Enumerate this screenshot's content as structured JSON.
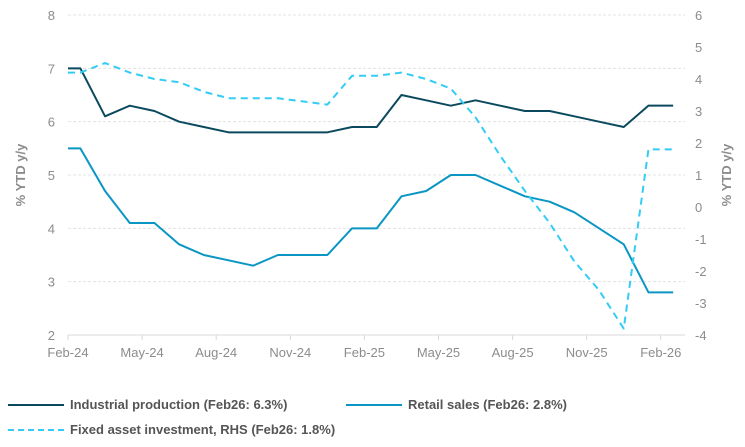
{
  "chart_data": {
    "type": "line",
    "categories": [
      "Feb-24",
      "Mar-24",
      "Apr-24",
      "May-24",
      "Jun-24",
      "Jul-24",
      "Aug-24",
      "Sep-24",
      "Oct-24",
      "Nov-24",
      "Dec-24",
      "Jan-25",
      "Feb-25",
      "Mar-25",
      "Apr-25",
      "May-25",
      "Jun-25",
      "Jul-25",
      "Aug-25",
      "Sep-25",
      "Oct-25",
      "Nov-25",
      "Dec-25",
      "Jan-26",
      "Feb-26"
    ],
    "xtick_labels": [
      "Feb-24",
      "May-24",
      "Aug-24",
      "Nov-24",
      "Feb-25",
      "May-25",
      "Aug-25",
      "Nov-25",
      "Feb-26"
    ],
    "ylabel": "% YTD y/y",
    "y2label": "% YTD y/y",
    "ylim": [
      2,
      8
    ],
    "y2lim": [
      -4,
      6
    ],
    "yticks": [
      2,
      3,
      4,
      5,
      6,
      7,
      8
    ],
    "y2ticks": [
      -4,
      -3,
      -2,
      -1,
      0,
      1,
      2,
      3,
      4,
      5,
      6
    ],
    "grid": true,
    "legend_placement": "bottom",
    "series": [
      {
        "name": "Industrial production (Feb26: 6.3%)",
        "axis": "left",
        "color": "#0b4a5e",
        "style": "solid",
        "values": [
          7.0,
          6.1,
          6.3,
          6.2,
          6.0,
          5.9,
          5.8,
          5.8,
          5.8,
          5.8,
          5.8,
          5.9,
          5.9,
          6.5,
          6.4,
          6.3,
          6.4,
          6.3,
          6.2,
          6.2,
          6.1,
          6.0,
          5.9,
          6.3,
          6.3
        ]
      },
      {
        "name": "Retail sales (Feb26: 2.8%)",
        "axis": "left",
        "color": "#0a96c4",
        "style": "solid",
        "values": [
          5.5,
          4.7,
          4.1,
          4.1,
          3.7,
          3.5,
          3.4,
          3.3,
          3.5,
          3.5,
          3.5,
          4.0,
          4.0,
          4.6,
          4.7,
          5.0,
          5.0,
          4.8,
          4.6,
          4.5,
          4.3,
          4.0,
          3.7,
          2.8,
          2.8
        ]
      },
      {
        "name": "Fixed asset investment, RHS (Feb26: 1.8%)",
        "axis": "right",
        "color": "#33ccf5",
        "style": "dashed",
        "values": [
          4.2,
          4.5,
          4.2,
          4.0,
          3.9,
          3.6,
          3.4,
          3.4,
          3.4,
          3.3,
          3.2,
          4.1,
          4.1,
          4.2,
          4.0,
          3.7,
          2.8,
          1.6,
          0.5,
          -0.5,
          -1.7,
          -2.6,
          -3.8,
          1.8,
          1.8
        ]
      }
    ]
  }
}
